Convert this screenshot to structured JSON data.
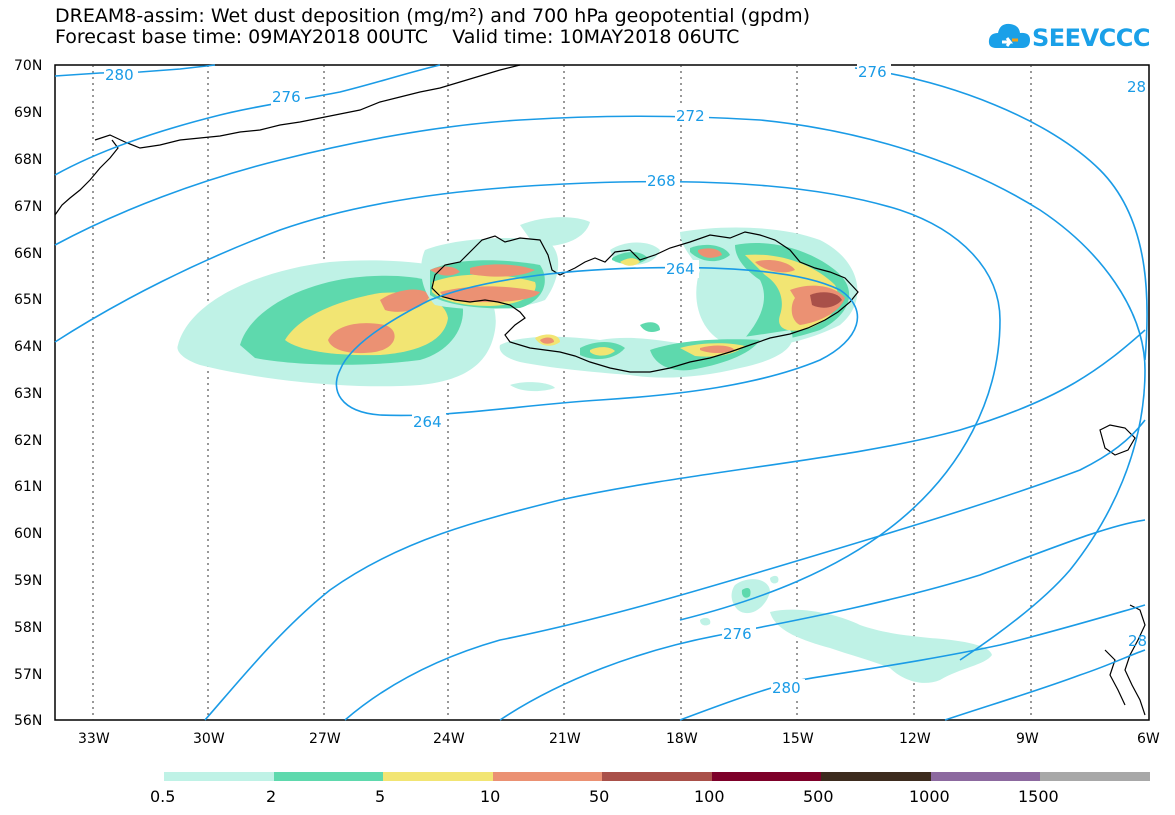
{
  "header": {
    "title_line1": "DREAM8-assim: Wet dust deposition (mg/m²) and 700 hPa geopotential (gpdm)",
    "title_line2": "Forecast base time: 09MAY2018 00UTC    Valid time: 10MAY2018 06UTC"
  },
  "logo": {
    "text": "SEEVCCC",
    "icon": "cloud-logo-icon"
  },
  "map": {
    "lat_labels": [
      "70N",
      "69N",
      "68N",
      "67N",
      "66N",
      "65N",
      "64N",
      "63N",
      "62N",
      "61N",
      "60N",
      "59N",
      "58N",
      "57N",
      "56N"
    ],
    "lon_labels": [
      "33W",
      "30W",
      "27W",
      "24W",
      "21W",
      "18W",
      "15W",
      "12W",
      "9W",
      "6W"
    ],
    "contour_labels": [
      "280",
      "276",
      "272",
      "268",
      "264",
      "264",
      "276",
      "280",
      "276",
      "28",
      "28"
    ],
    "line_color": "#1a9be6"
  },
  "colorbar": {
    "colors": [
      "#bff2e6",
      "#5ed9ad",
      "#f2e573",
      "#eb9173",
      "#a95049",
      "#7d0029",
      "#3d2b1e",
      "#8c699f",
      "#a8a8a8"
    ],
    "labels": [
      "0.5",
      "2",
      "5",
      "10",
      "50",
      "100",
      "500",
      "1000",
      "1500"
    ]
  }
}
